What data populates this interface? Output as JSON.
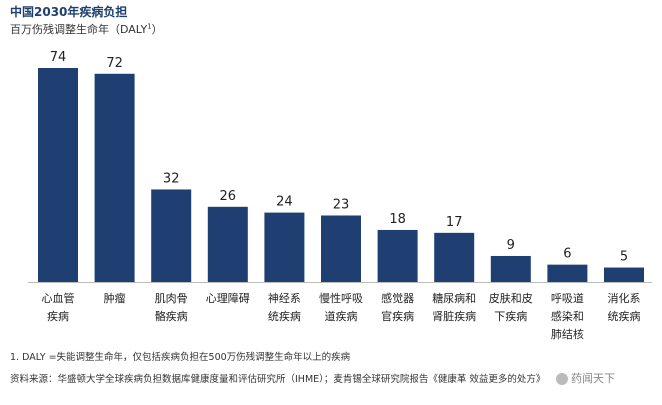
{
  "title": "中国2030年疾病负担",
  "subtitle": "百万伤残调整生命年（DALY",
  "subtitle_sup": "1",
  "subtitle_close": "）",
  "chart_data": {
    "type": "bar",
    "categories": [
      [
        "心血管",
        "疾病"
      ],
      [
        "肿瘤"
      ],
      [
        "肌肉骨",
        "骼疾病"
      ],
      [
        "心理障碍"
      ],
      [
        "神经系",
        "统疾病"
      ],
      [
        "慢性呼吸",
        "道疾病"
      ],
      [
        "感觉器",
        "官疾病"
      ],
      [
        "糖尿病和",
        "肾脏疾病"
      ],
      [
        "皮肤和皮",
        "下疾病"
      ],
      [
        "呼吸道",
        "感染和",
        "肺结核"
      ],
      [
        "消化系",
        "统疾病"
      ]
    ],
    "values": [
      74,
      72,
      32,
      26,
      24,
      23,
      18,
      17,
      9,
      6,
      5
    ],
    "bar_color": "#1f3f73",
    "title": "中国2030年疾病负担",
    "ylabel": "百万伤残调整生命年（DALY1）",
    "ylim": [
      0,
      80
    ]
  },
  "footnote": "1. DALY =失能调整生命年，仅包括疾病负担在500万伤残调整生命年以上的疾病",
  "source": "资料来源：华盛顿大学全球疾病负担数据库健康度量和评估研究所（IHME）；麦肯锡全球研究院报告《健康革  效益更多的处方》",
  "watermark": "药闻天下"
}
